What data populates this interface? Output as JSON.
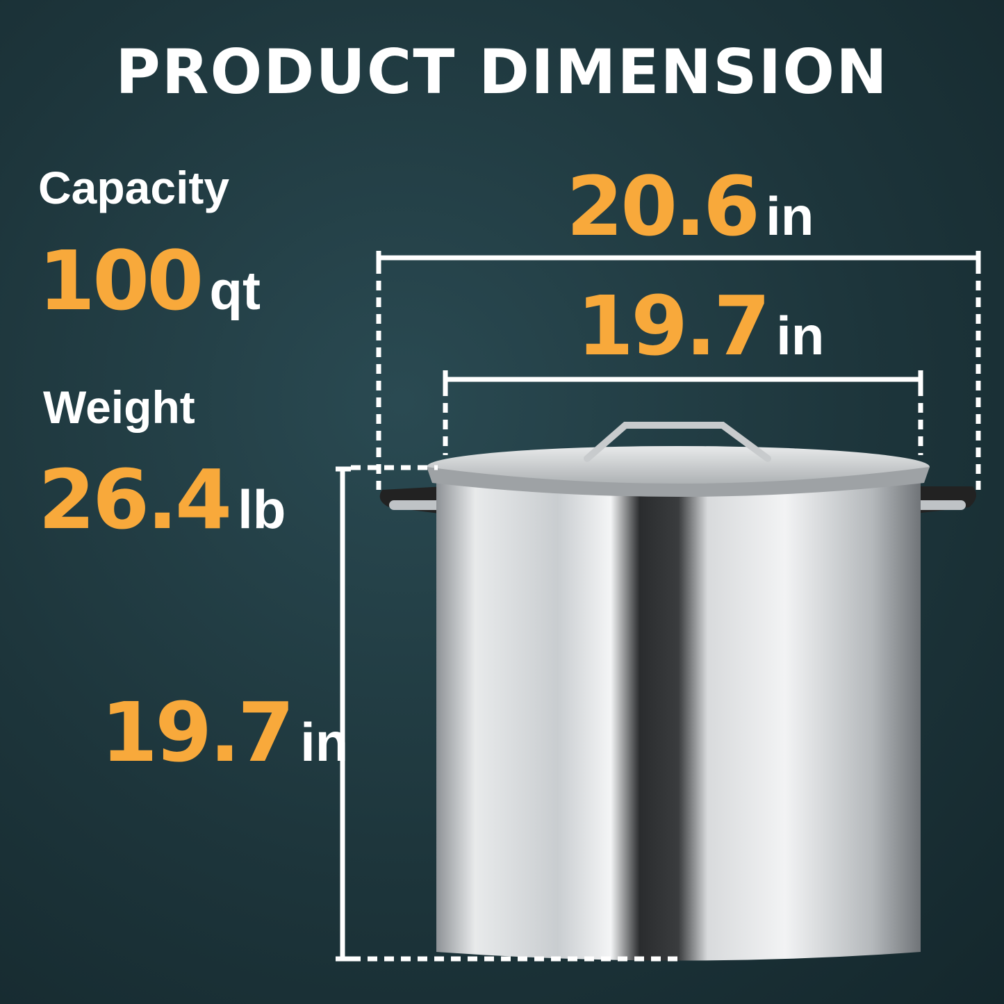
{
  "title": "PRODUCT DIMENSION",
  "capacity": {
    "label": "Capacity",
    "value": "100",
    "unit": "qt"
  },
  "weight": {
    "label": "Weight",
    "value": "26.4",
    "unit": "lb"
  },
  "dimensions": {
    "outer_width": {
      "value": "20.6",
      "unit": "in"
    },
    "inner_width": {
      "value": "19.7",
      "unit": "in"
    },
    "height": {
      "value": "19.7",
      "unit": "in"
    }
  },
  "colors": {
    "accent": "#f8a93b",
    "background": "#1f3a40",
    "text": "#ffffff"
  }
}
